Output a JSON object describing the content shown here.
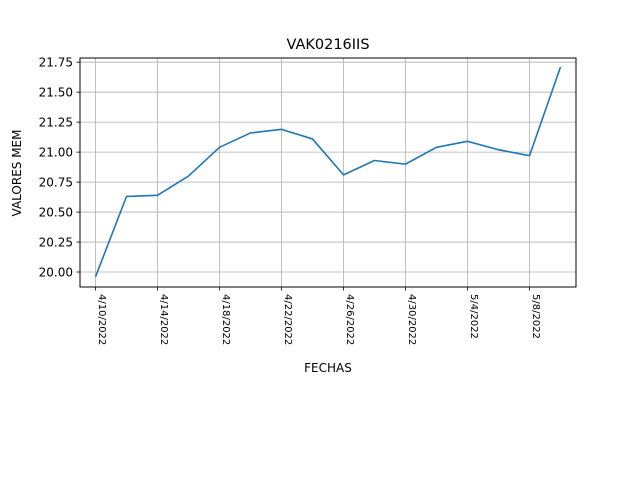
{
  "chart_data": {
    "type": "line",
    "title": "VAK0216IIS",
    "xlabel": "FECHAS",
    "ylabel": "VALORES MEM",
    "x": [
      "4/10/2022",
      "4/12/2022",
      "4/14/2022",
      "4/16/2022",
      "4/18/2022",
      "4/20/2022",
      "4/22/2022",
      "4/24/2022",
      "4/26/2022",
      "4/28/2022",
      "4/30/2022",
      "5/2/2022",
      "5/4/2022",
      "5/6/2022",
      "5/8/2022",
      "5/10/2022"
    ],
    "series": [
      {
        "values": [
          19.96,
          20.63,
          20.64,
          20.8,
          21.04,
          21.16,
          21.19,
          21.11,
          20.81,
          20.93,
          20.9,
          21.04,
          21.09,
          21.02,
          20.97,
          21.71
        ],
        "color": "#1f77b4"
      }
    ],
    "xticks": [
      "4/10/2022",
      "4/14/2022",
      "4/18/2022",
      "4/22/2022",
      "4/26/2022",
      "4/30/2022",
      "5/4/2022",
      "5/8/2022"
    ],
    "yticks": [
      "20.00",
      "20.25",
      "20.50",
      "20.75",
      "21.00",
      "21.25",
      "21.50",
      "21.75"
    ],
    "ylim": [
      19.875,
      21.785
    ],
    "xlim": [
      "4/9/2022",
      "5/11/2022"
    ],
    "grid": true
  }
}
